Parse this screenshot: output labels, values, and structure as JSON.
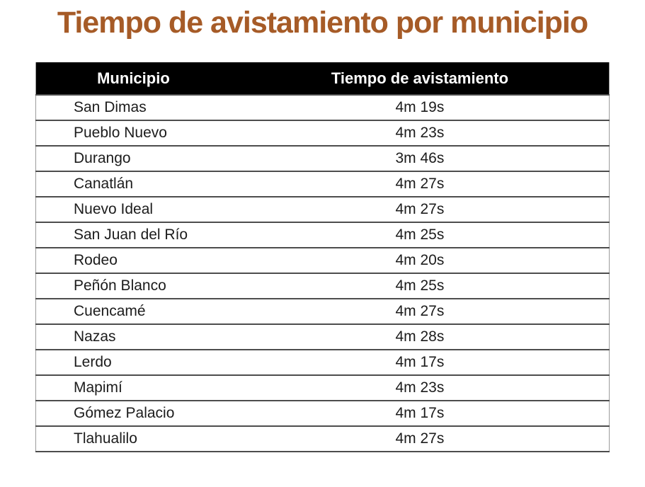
{
  "title": "Tiempo de avistamiento por municipio",
  "colors": {
    "background": "#ffffff",
    "title": "#a65b27",
    "header_bg": "#000000",
    "header_text": "#ffffff",
    "row_text": "#1c1c1c",
    "separator": "#4d4d4d",
    "outer_border": "#9c9c9c"
  },
  "table": {
    "columns": [
      "Municipio",
      "Tiempo de avistamiento"
    ],
    "rows": [
      [
        "San Dimas",
        "4m 19s"
      ],
      [
        "Pueblo Nuevo",
        "4m 23s"
      ],
      [
        "Durango",
        "3m 46s"
      ],
      [
        "Canatlán",
        "4m 27s"
      ],
      [
        "Nuevo Ideal",
        "4m 27s"
      ],
      [
        "San Juan del Río",
        "4m 25s"
      ],
      [
        "Rodeo",
        "4m 20s"
      ],
      [
        "Peñón Blanco",
        "4m 25s"
      ],
      [
        "Cuencamé",
        "4m 27s"
      ],
      [
        "Nazas",
        "4m 28s"
      ],
      [
        "Lerdo",
        "4m 17s"
      ],
      [
        "Mapimí",
        "4m 23s"
      ],
      [
        "Gómez Palacio",
        "4m 17s"
      ],
      [
        "Tlahualilo",
        "4m 27s"
      ]
    ]
  },
  "chart_data": {
    "type": "table",
    "title": "Tiempo de avistamiento por municipio",
    "columns": [
      "Municipio",
      "Tiempo de avistamiento"
    ],
    "rows": [
      [
        "San Dimas",
        "4m 19s"
      ],
      [
        "Pueblo Nuevo",
        "4m 23s"
      ],
      [
        "Durango",
        "3m 46s"
      ],
      [
        "Canatlán",
        "4m 27s"
      ],
      [
        "Nuevo Ideal",
        "4m 27s"
      ],
      [
        "San Juan del Río",
        "4m 25s"
      ],
      [
        "Rodeo",
        "4m 20s"
      ],
      [
        "Peñón Blanco",
        "4m 25s"
      ],
      [
        "Cuencamé",
        "4m 27s"
      ],
      [
        "Nazas",
        "4m 28s"
      ],
      [
        "Lerdo",
        "4m 17s"
      ],
      [
        "Mapimí",
        "4m 23s"
      ],
      [
        "Gómez Palacio",
        "4m 17s"
      ],
      [
        "Tlahualilo",
        "4m 27s"
      ]
    ]
  }
}
